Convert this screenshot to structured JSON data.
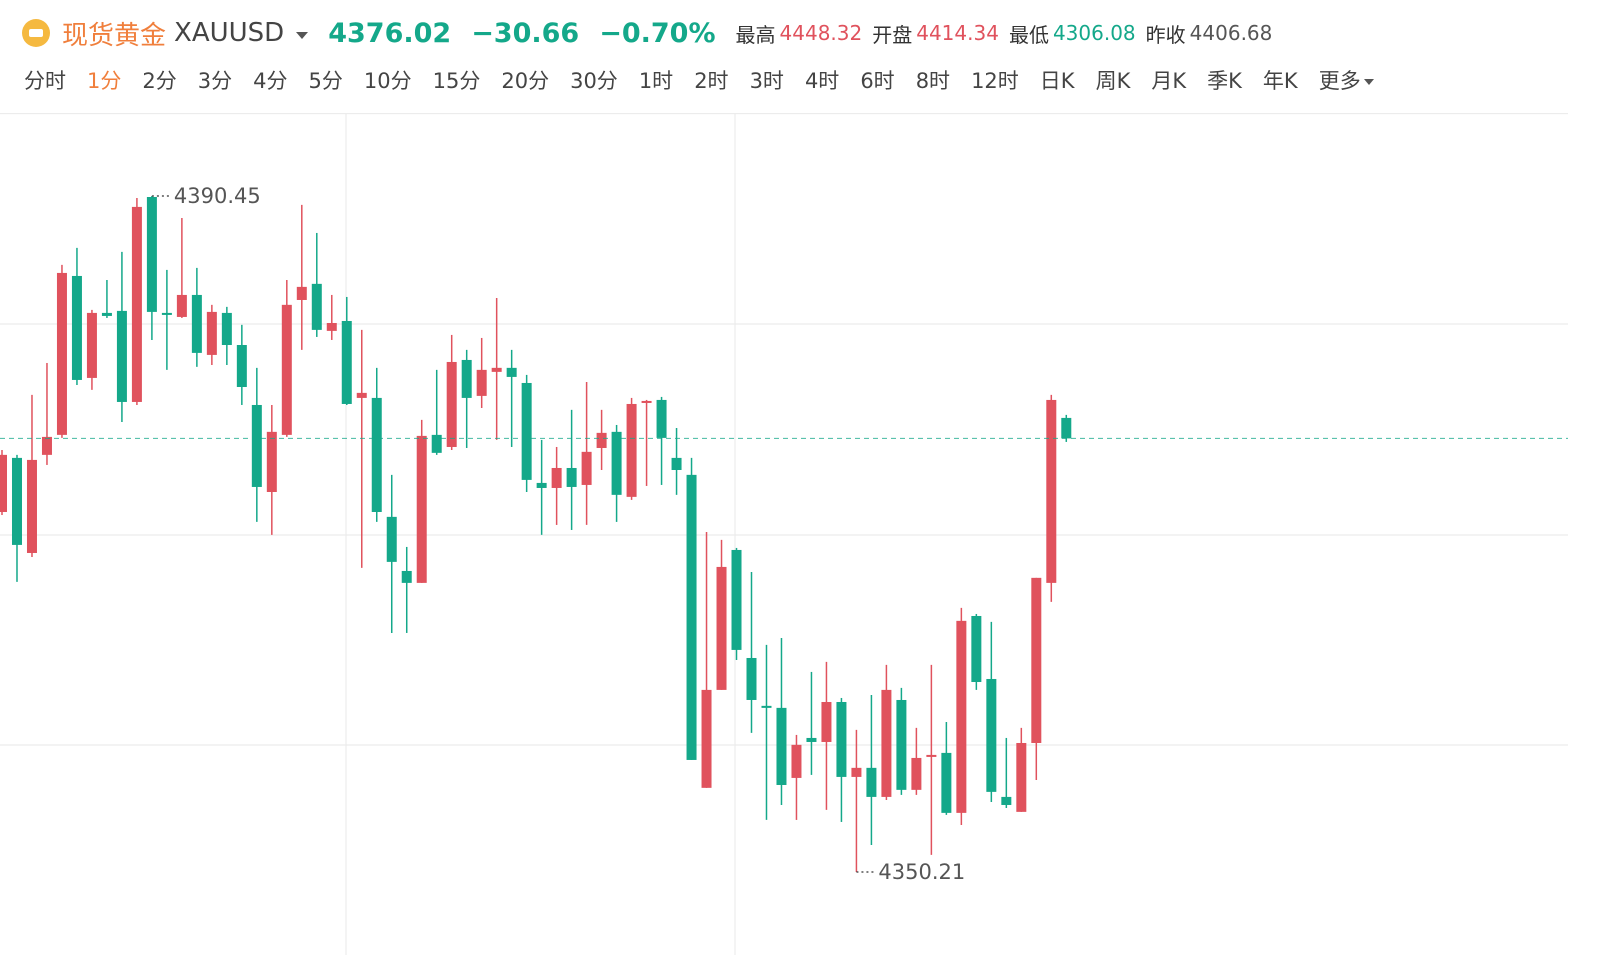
{
  "header": {
    "name": "现货黄金",
    "symbol": "XAUUSD",
    "price": "4376.02",
    "change": "−30.66",
    "change_pct": "−0.70%",
    "stats": [
      {
        "label": "最高",
        "value": "4448.32",
        "tone": "up"
      },
      {
        "label": "开盘",
        "value": "4414.34",
        "tone": "up"
      },
      {
        "label": "最低",
        "value": "4306.08",
        "tone": "down"
      },
      {
        "label": "昨收",
        "value": "4406.68",
        "tone": "flat"
      }
    ]
  },
  "periods": [
    {
      "label": "分时"
    },
    {
      "label": "1分",
      "selected": true
    },
    {
      "label": "2分"
    },
    {
      "label": "3分"
    },
    {
      "label": "4分"
    },
    {
      "label": "5分"
    },
    {
      "label": "10分"
    },
    {
      "label": "15分"
    },
    {
      "label": "20分"
    },
    {
      "label": "30分"
    },
    {
      "label": "1时"
    },
    {
      "label": "2时"
    },
    {
      "label": "3时"
    },
    {
      "label": "4时"
    },
    {
      "label": "6时"
    },
    {
      "label": "8时"
    },
    {
      "label": "12时"
    },
    {
      "label": "日K"
    },
    {
      "label": "周K"
    },
    {
      "label": "月K"
    },
    {
      "label": "季K"
    },
    {
      "label": "年K"
    },
    {
      "label": "更多",
      "dropdown": true
    }
  ],
  "chart_data": {
    "type": "candlestick",
    "categories": [
      null,
      null,
      null,
      null,
      null,
      null,
      null,
      null,
      null,
      null,
      null,
      null,
      null,
      null,
      null,
      null,
      null,
      null,
      null,
      null,
      null,
      null,
      null,
      null,
      null,
      null,
      null,
      null,
      null,
      null,
      null,
      null,
      null,
      null,
      null,
      null,
      null,
      null,
      null,
      null,
      null,
      null,
      null,
      null,
      null,
      null,
      null,
      null,
      null,
      null,
      null,
      null,
      null,
      null,
      null,
      null,
      null,
      null,
      null,
      null,
      null,
      null,
      null,
      null,
      null,
      null,
      null,
      null,
      null,
      null,
      null,
      null
    ],
    "open": [
      4371.64,
      4374.86,
      4369.2,
      4375.04,
      4376.23,
      4385.69,
      4379.62,
      4383.49,
      4383.61,
      4378.19,
      4390.39,
      4383.49,
      4383.25,
      4384.56,
      4380.99,
      4383.49,
      4381.58,
      4378.01,
      4372.83,
      4376.23,
      4384.26,
      4385.22,
      4382.42,
      4383.01,
      4378.43,
      4378.43,
      4371.35,
      4368.13,
      4367.42,
      4376.23,
      4375.51,
      4380.69,
      4378.55,
      4379.98,
      4380.22,
      4379.32,
      4373.37,
      4373.07,
      4374.26,
      4373.25,
      4375.45,
      4376.41,
      4372.54,
      4378.13,
      4378.31,
      4374.86,
      4373.85,
      4355.22,
      4361.05,
      4369.38,
      4362.95,
      4360.1,
      4359.98,
      4355.81,
      4358.19,
      4357.95,
      4360.33,
      4355.87,
      4356.41,
      4354.68,
      4360.45,
      4355.1,
      4357.06,
      4357.3,
      4353.73,
      4365.45,
      4361.7,
      4354.68,
      4353.79,
      4357.89,
      4367.42,
      4377.24
    ],
    "high": [
      4375.33,
      4375.04,
      4378.61,
      4380.51,
      4386.35,
      4387.36,
      4383.67,
      4385.45,
      4387.12,
      4390.33,
      4390.45,
      4386.05,
      4389.14,
      4386.17,
      4383.97,
      4383.85,
      4382.78,
      4380.22,
      4378.01,
      4385.45,
      4389.92,
      4388.25,
      4384.56,
      4384.44,
      4382.48,
      4380.22,
      4373.85,
      4369.56,
      4377.12,
      4380.1,
      4382.18,
      4381.29,
      4382.0,
      4384.38,
      4381.29,
      4379.8,
      4375.93,
      4375.51,
      4377.72,
      4379.38,
      4377.72,
      4376.82,
      4378.43,
      4378.31,
      4378.49,
      4376.64,
      4374.86,
      4370.45,
      4369.98,
      4369.5,
      4368.07,
      4363.73,
      4364.14,
      4358.37,
      4362.12,
      4362.72,
      4360.57,
      4358.67,
      4360.75,
      4362.54,
      4361.17,
      4358.79,
      4362.54,
      4359.14,
      4365.93,
      4365.57,
      4365.1,
      4358.19,
      4358.79,
      4367.72,
      4378.61,
      4377.42
    ],
    "low": [
      4371.46,
      4367.48,
      4368.96,
      4374.44,
      4376.05,
      4379.2,
      4378.91,
      4383.19,
      4377.0,
      4378.01,
      4381.88,
      4380.1,
      4383.19,
      4380.28,
      4380.39,
      4380.39,
      4378.01,
      4371.05,
      4370.28,
      4376.11,
      4381.29,
      4382.06,
      4381.88,
      4378.01,
      4368.31,
      4371.05,
      4364.44,
      4364.44,
      4367.42,
      4375.04,
      4375.33,
      4375.45,
      4377.83,
      4375.93,
      4375.51,
      4372.83,
      4370.28,
      4370.87,
      4370.57,
      4370.87,
      4374.14,
      4371.05,
      4372.36,
      4373.19,
      4373.25,
      4372.66,
      4356.88,
      4355.22,
      4361.05,
      4362.83,
      4358.49,
      4353.31,
      4354.2,
      4353.31,
      4355.99,
      4353.91,
      4353.19,
      4350.21,
      4351.82,
      4354.5,
      4354.8,
      4354.8,
      4351.23,
      4353.61,
      4353.01,
      4361.05,
      4354.38,
      4354.02,
      4353.79,
      4355.69,
      4366.29,
      4375.81
    ],
    "close": [
      4375.04,
      4369.68,
      4374.74,
      4376.11,
      4385.87,
      4379.5,
      4383.49,
      4383.31,
      4378.19,
      4389.8,
      4383.55,
      4383.37,
      4384.56,
      4381.11,
      4383.55,
      4381.58,
      4379.08,
      4373.13,
      4376.41,
      4383.97,
      4385.04,
      4382.48,
      4382.89,
      4378.07,
      4378.73,
      4371.64,
      4368.67,
      4367.42,
      4376.17,
      4375.16,
      4380.57,
      4378.43,
      4380.1,
      4380.22,
      4379.68,
      4373.55,
      4373.07,
      4374.26,
      4373.13,
      4375.22,
      4376.35,
      4372.66,
      4378.07,
      4378.25,
      4376.05,
      4374.14,
      4356.88,
      4361.05,
      4368.37,
      4363.43,
      4360.45,
      4359.98,
      4355.39,
      4357.78,
      4357.95,
      4360.33,
      4355.87,
      4356.41,
      4354.68,
      4361.05,
      4355.1,
      4357.0,
      4357.18,
      4353.73,
      4365.16,
      4361.52,
      4354.98,
      4354.2,
      4357.89,
      4367.72,
      4378.31,
      4376.02
    ],
    "up_color": "#e0525d",
    "down_color": "#14a88a",
    "ylim": [
      4345.27,
      4395.39
    ],
    "last_price_line": true
  }
}
